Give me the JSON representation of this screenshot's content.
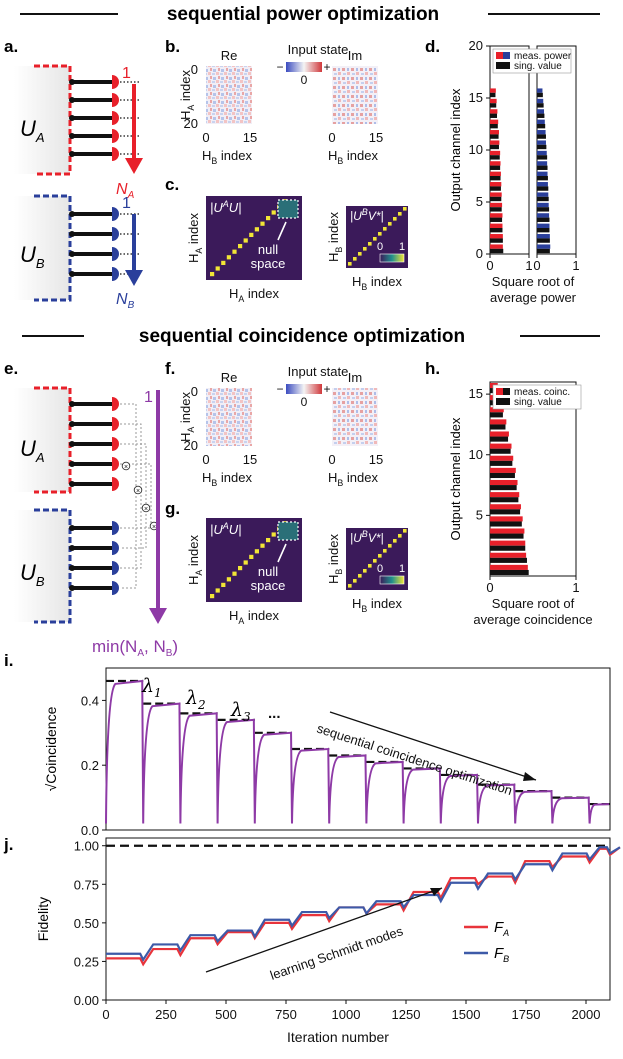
{
  "colors": {
    "red": "#e8202a",
    "blue": "#2a3f9b",
    "purple": "#8e3aa6",
    "black": "#111111",
    "matrix_bg": "#3b1a5a",
    "diag": "#f2e636",
    "line_red": "#e8343b",
    "line_blue": "#3d5aa8",
    "line_purple": "#8e3aa6"
  },
  "sections": {
    "top": "sequential power optimization",
    "middle": "sequential coincidence optimization"
  },
  "panel_letters": {
    "a": "a.",
    "b": "b.",
    "c": "c.",
    "d": "d.",
    "e": "e.",
    "f": "f.",
    "g": "g.",
    "h": "h.",
    "i": "i.",
    "j": "j."
  },
  "schematic": {
    "ua": "U",
    "ua_sub": "A",
    "ub": "U",
    "ub_sub": "B",
    "one": "1",
    "na": "N",
    "na_sub": "A",
    "nb": "N",
    "nb_sub": "B",
    "min_label": "min(N",
    "min_sub_a": "A",
    "min_mid": ", N",
    "min_sub_b": "B",
    "min_end": ")"
  },
  "input_state": {
    "title": "Input state",
    "re": "Re",
    "im": "Im",
    "minus": "−",
    "plus": "+",
    "zero": "0",
    "ylabel": "H",
    "ylabel_sub": "A",
    "ylabel_suffix": " index",
    "xlabel": "H",
    "xlabel_sub": "B",
    "xlabel_suffix": " index",
    "yticks": [
      "0",
      "20"
    ],
    "xticks": [
      "0",
      "15"
    ]
  },
  "matrices": {
    "ua_label": "|U",
    "ua_sup": "A",
    "ua_rest": "U|",
    "ub_label": "|U",
    "ub_sup": "B",
    "ub_rest": "V*|",
    "null_space": "null",
    "null_space2": "space",
    "ha_index": "H",
    "ha_sub": "A",
    "hb_sub": "B",
    "index": " index",
    "cbar_0": "0",
    "cbar_1": "1"
  },
  "panel_d": {
    "ylabel": "Output channel index",
    "xlabel1": "Square root of",
    "xlabel2": "average power",
    "legend": [
      "meas. power",
      "sing. value"
    ],
    "yticks": [
      "0",
      "5",
      "10",
      "15",
      "20"
    ],
    "xticks_left": [
      "0",
      "1"
    ],
    "xticks_right": [
      "0",
      "1"
    ]
  },
  "panel_h": {
    "ylabel": "Output channel index",
    "xlabel1": "Square root of",
    "xlabel2": "average coincidence",
    "legend": [
      "meas. coinc.",
      "sing. value"
    ],
    "yticks": [
      "5",
      "10",
      "15"
    ],
    "xticks": [
      "0",
      "1"
    ]
  },
  "chart_data": [
    {
      "type": "bar",
      "panel": "d",
      "orientation": "horizontal",
      "xlabel": "Square root of average power",
      "ylabel": "Output channel index",
      "ylim": [
        0,
        20
      ],
      "xlim": [
        0,
        1
      ],
      "legend": "top",
      "series": [
        {
          "name": "meas. power",
          "values": [
            0.33,
            0.33,
            0.32,
            0.32,
            0.31,
            0.3,
            0.29,
            0.28,
            0.27,
            0.26,
            0.24,
            0.23,
            0.21,
            0.19,
            0.17,
            0.15
          ]
        },
        {
          "name": "sing. value",
          "values": [
            0.34,
            0.33,
            0.32,
            0.31,
            0.3,
            0.29,
            0.28,
            0.27,
            0.26,
            0.25,
            0.23,
            0.22,
            0.2,
            0.18,
            0.16,
            0.14
          ]
        }
      ]
    },
    {
      "type": "bar",
      "panel": "h",
      "orientation": "horizontal",
      "xlabel": "Square root of average coincidence",
      "ylabel": "Output channel index",
      "ylim": [
        0,
        16
      ],
      "xlim": [
        0,
        1
      ],
      "legend": "top",
      "series": [
        {
          "name": "meas. coinc.",
          "values": [
            0.44,
            0.42,
            0.41,
            0.4,
            0.38,
            0.36,
            0.34,
            0.32,
            0.3,
            0.27,
            0.25,
            0.22,
            0.19,
            0.16,
            0.12,
            0.09
          ]
        },
        {
          "name": "sing. value",
          "values": [
            0.45,
            0.43,
            0.41,
            0.39,
            0.37,
            0.35,
            0.33,
            0.31,
            0.29,
            0.26,
            0.24,
            0.21,
            0.18,
            0.15,
            0.11,
            0.08
          ]
        }
      ]
    },
    {
      "type": "line",
      "panel": "i",
      "ylabel": "√Coincidence",
      "xlim": [
        0,
        2100
      ],
      "ylim": [
        0,
        0.5
      ],
      "yticks": [
        "0.0",
        "0.2",
        "0.4"
      ],
      "annotation": "sequential coincidence optimization",
      "eigen_labels": [
        "λ",
        "λ",
        "λ",
        "..."
      ],
      "eigen_subs": [
        "1",
        "2",
        "3"
      ],
      "steps_start": [
        0,
        155,
        310,
        465,
        620,
        775,
        930,
        1085,
        1240,
        1395,
        1550,
        1705,
        1860,
        2015
      ],
      "plateau_values": [
        0.46,
        0.39,
        0.36,
        0.34,
        0.3,
        0.25,
        0.23,
        0.21,
        0.19,
        0.17,
        0.14,
        0.12,
        0.1,
        0.08
      ],
      "singular_values": [
        0.46,
        0.39,
        0.36,
        0.34,
        0.3,
        0.25,
        0.23,
        0.21,
        0.19,
        0.17,
        0.14,
        0.12,
        0.1,
        0.08
      ]
    },
    {
      "type": "line",
      "panel": "j",
      "xlabel": "Iteration number",
      "ylabel": "Fidelity",
      "xlim": [
        0,
        2100
      ],
      "ylim": [
        0,
        1.05
      ],
      "yticks": [
        "0.00",
        "0.25",
        "0.50",
        "0.75",
        "1.00"
      ],
      "xticks": [
        "0",
        "250",
        "500",
        "750",
        "1000",
        "1250",
        "1500",
        "1750",
        "2000"
      ],
      "annotation": "learning Schmidt modes",
      "legend_a": "F",
      "legend_a_sub": "A",
      "legend_b": "F",
      "legend_b_sub": "B",
      "series": [
        {
          "name": "F_A",
          "x": [
            0,
            155,
            310,
            465,
            620,
            775,
            930,
            1085,
            1240,
            1395,
            1550,
            1705,
            1860,
            2015,
            2100
          ],
          "y": [
            0.27,
            0.33,
            0.4,
            0.44,
            0.5,
            0.55,
            0.6,
            0.62,
            0.7,
            0.79,
            0.8,
            0.9,
            0.93,
            0.98,
            0.99
          ]
        },
        {
          "name": "F_B",
          "x": [
            0,
            155,
            310,
            465,
            620,
            775,
            930,
            1085,
            1240,
            1395,
            1550,
            1705,
            1860,
            2015,
            2100
          ],
          "y": [
            0.3,
            0.36,
            0.42,
            0.45,
            0.52,
            0.57,
            0.6,
            0.64,
            0.68,
            0.76,
            0.82,
            0.88,
            0.95,
            0.99,
            0.99
          ]
        }
      ]
    }
  ]
}
